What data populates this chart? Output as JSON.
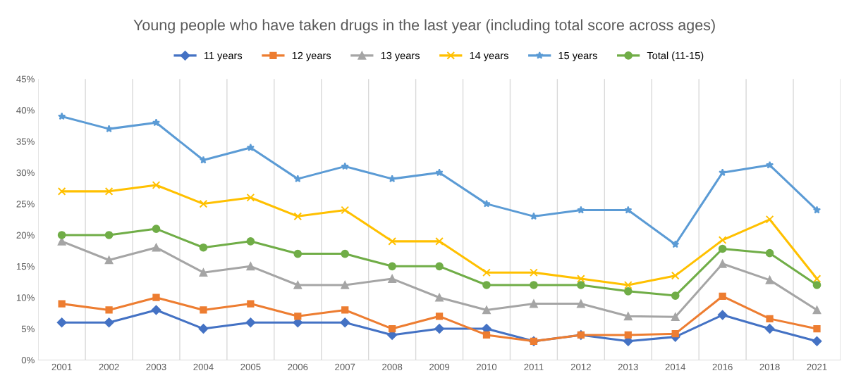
{
  "chart_data": {
    "type": "line",
    "title": "Young people who have taken drugs in the last year (including total score across ages)",
    "categories": [
      "2001",
      "2002",
      "2003",
      "2004",
      "2005",
      "2006",
      "2007",
      "2008",
      "2009",
      "2010",
      "2011",
      "2012",
      "2013",
      "2014",
      "2016",
      "2018",
      "2021"
    ],
    "series": [
      {
        "name": "11 years",
        "color": "#4472c4",
        "marker": "diamond",
        "values": [
          6,
          6,
          8,
          5,
          6,
          6,
          6,
          4,
          5,
          5,
          3,
          4,
          3,
          3.7,
          7.2,
          5,
          3
        ]
      },
      {
        "name": "12 years",
        "color": "#ed7d31",
        "marker": "square",
        "values": [
          9,
          8,
          10,
          8,
          9,
          7,
          8,
          5,
          7,
          4,
          3,
          4,
          4,
          4.2,
          10.2,
          6.6,
          5
        ]
      },
      {
        "name": "13 years",
        "color": "#a5a5a5",
        "marker": "triangle",
        "values": [
          19,
          16,
          18,
          14,
          15,
          12,
          12,
          13,
          10,
          8,
          9,
          9,
          7,
          6.9,
          15.4,
          12.8,
          8
        ]
      },
      {
        "name": "14 years",
        "color": "#ffc000",
        "marker": "cross",
        "values": [
          27,
          27,
          28,
          25,
          26,
          23,
          24,
          19,
          19,
          14,
          14,
          13,
          12,
          13.5,
          19.2,
          22.5,
          13
        ]
      },
      {
        "name": "15 years",
        "color": "#5b9bd5",
        "marker": "star",
        "values": [
          39,
          37,
          38,
          32,
          34,
          29,
          31,
          29,
          30,
          25,
          23,
          24,
          24,
          18.5,
          30,
          31.2,
          24
        ]
      },
      {
        "name": "Total (11-15)",
        "color": "#70ad47",
        "marker": "circle",
        "values": [
          20,
          20,
          21,
          18,
          19,
          17,
          17,
          15,
          15,
          12,
          12,
          12,
          11,
          10.3,
          17.8,
          17.1,
          12
        ]
      }
    ],
    "ylim": [
      0,
      45
    ],
    "yticks": [
      {
        "value": 0,
        "label": "0%"
      },
      {
        "value": 5,
        "label": "5%"
      },
      {
        "value": 10,
        "label": "10%"
      },
      {
        "value": 15,
        "label": "15%"
      },
      {
        "value": 20,
        "label": "20%"
      },
      {
        "value": 25,
        "label": "25%"
      },
      {
        "value": 30,
        "label": "30%"
      },
      {
        "value": 35,
        "label": "35%"
      },
      {
        "value": 40,
        "label": "40%"
      },
      {
        "value": 45,
        "label": "45%"
      }
    ],
    "grid": "x",
    "legend": "top"
  }
}
